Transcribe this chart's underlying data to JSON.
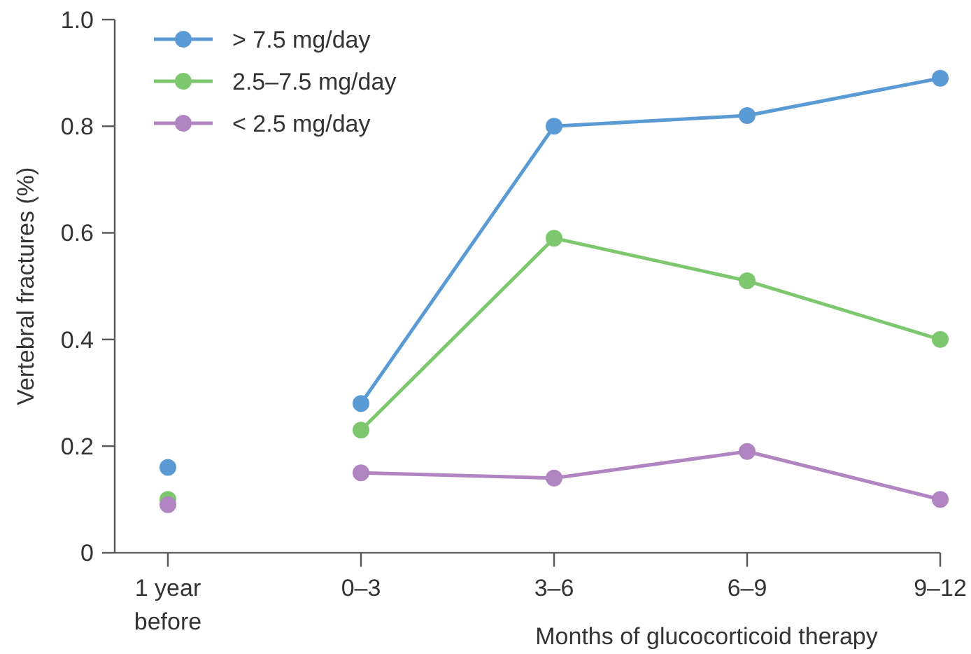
{
  "chart_data": {
    "type": "line",
    "xlabel": "Months of glucocorticoid therapy",
    "ylabel": "Vertebral fractures (%)",
    "categories": [
      "1 year\nbefore",
      "0–3",
      "3–6",
      "6–9",
      "9–12"
    ],
    "ylim": [
      0,
      1.0
    ],
    "yticks": [
      0,
      0.2,
      0.4,
      0.6,
      0.8,
      "1.0"
    ],
    "grid": false,
    "legend": "top left",
    "marker": "circle",
    "line_style": "solid",
    "series": [
      {
        "name": "> 7.5 mg/day",
        "color": "#5b9bd5",
        "values": [
          null,
          0.28,
          0.8,
          0.82,
          0.89
        ]
      },
      {
        "name": "2.5–7.5 mg/day",
        "color": "#7dc86e",
        "values": [
          null,
          0.23,
          0.59,
          0.51,
          0.4
        ]
      },
      {
        "name": "< 2.5 mg/day",
        "color": "#b085c2",
        "values": [
          null,
          0.15,
          0.14,
          0.19,
          0.1
        ]
      },
      {
        "type": "scatter",
        "color": "#5b9bd5",
        "values": [
          0.16,
          null,
          null,
          null,
          null
        ]
      },
      {
        "type": "scatter",
        "color": "#7dc86e",
        "values": [
          0.1,
          null,
          null,
          null,
          null
        ]
      },
      {
        "type": "scatter",
        "color": "#b085c2",
        "values": [
          0.09,
          null,
          null,
          null,
          null
        ]
      }
    ]
  }
}
